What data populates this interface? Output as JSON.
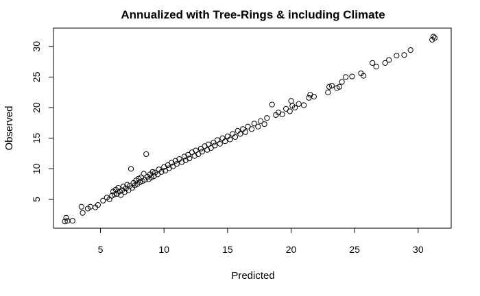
{
  "chart_data": {
    "type": "scatter",
    "title": "Annualized with Tree-Rings & including Climate",
    "xlabel": "Predicted",
    "ylabel": "Observed",
    "xlim": [
      1.3,
      32.6
    ],
    "ylim": [
      0.3,
      33.0
    ],
    "xticks": [
      5,
      10,
      15,
      20,
      25,
      30
    ],
    "yticks": [
      5,
      10,
      15,
      20,
      25,
      30
    ],
    "grid": false,
    "marker": "open-circle",
    "marker_color": "#000000",
    "points": [
      [
        2.2,
        1.4
      ],
      [
        2.3,
        2.0
      ],
      [
        2.4,
        1.5
      ],
      [
        2.8,
        1.5
      ],
      [
        3.5,
        3.8
      ],
      [
        3.6,
        2.8
      ],
      [
        4.0,
        3.5
      ],
      [
        4.2,
        3.8
      ],
      [
        4.6,
        3.7
      ],
      [
        4.8,
        4.1
      ],
      [
        5.2,
        4.8
      ],
      [
        5.5,
        5.3
      ],
      [
        5.7,
        5.0
      ],
      [
        5.9,
        5.6
      ],
      [
        6.0,
        6.3
      ],
      [
        6.1,
        5.8
      ],
      [
        6.2,
        6.6
      ],
      [
        6.3,
        5.9
      ],
      [
        6.4,
        6.9
      ],
      [
        6.5,
        6.3
      ],
      [
        6.6,
        5.7
      ],
      [
        6.7,
        6.5
      ],
      [
        6.8,
        7.1
      ],
      [
        6.9,
        6.2
      ],
      [
        7.0,
        6.8
      ],
      [
        7.1,
        7.4
      ],
      [
        7.2,
        6.5
      ],
      [
        7.3,
        7.2
      ],
      [
        7.4,
        10.0
      ],
      [
        7.5,
        6.9
      ],
      [
        7.6,
        7.7
      ],
      [
        7.7,
        7.3
      ],
      [
        7.8,
        8.1
      ],
      [
        7.9,
        7.5
      ],
      [
        8.0,
        8.4
      ],
      [
        8.1,
        7.8
      ],
      [
        8.2,
        8.6
      ],
      [
        8.3,
        8.0
      ],
      [
        8.4,
        9.2
      ],
      [
        8.5,
        8.2
      ],
      [
        8.6,
        12.4
      ],
      [
        8.7,
        8.7
      ],
      [
        8.8,
        8.3
      ],
      [
        8.9,
        9.1
      ],
      [
        9.0,
        8.6
      ],
      [
        9.1,
        9.5
      ],
      [
        9.2,
        8.8
      ],
      [
        9.3,
        9.4
      ],
      [
        9.5,
        9.1
      ],
      [
        9.6,
        9.9
      ],
      [
        9.8,
        9.5
      ],
      [
        10.0,
        10.3
      ],
      [
        10.1,
        9.7
      ],
      [
        10.3,
        10.6
      ],
      [
        10.4,
        10.1
      ],
      [
        10.6,
        11.0
      ],
      [
        10.7,
        10.4
      ],
      [
        10.9,
        11.3
      ],
      [
        11.0,
        10.8
      ],
      [
        11.2,
        11.6
      ],
      [
        11.4,
        11.1
      ],
      [
        11.6,
        12.0
      ],
      [
        11.7,
        11.4
      ],
      [
        11.9,
        12.3
      ],
      [
        12.0,
        11.7
      ],
      [
        12.2,
        12.7
      ],
      [
        12.4,
        12.1
      ],
      [
        12.5,
        13.0
      ],
      [
        12.7,
        12.4
      ],
      [
        12.9,
        13.3
      ],
      [
        13.0,
        12.8
      ],
      [
        13.2,
        13.7
      ],
      [
        13.4,
        13.1
      ],
      [
        13.5,
        14.0
      ],
      [
        13.7,
        13.4
      ],
      [
        13.9,
        14.3
      ],
      [
        14.0,
        13.8
      ],
      [
        14.2,
        14.7
      ],
      [
        14.4,
        14.1
      ],
      [
        14.6,
        15.0
      ],
      [
        14.8,
        14.5
      ],
      [
        15.0,
        15.3
      ],
      [
        15.2,
        14.8
      ],
      [
        15.4,
        15.7
      ],
      [
        15.6,
        15.2
      ],
      [
        15.8,
        16.2
      ],
      [
        16.0,
        15.7
      ],
      [
        16.2,
        16.5
      ],
      [
        16.4,
        16.0
      ],
      [
        16.6,
        16.9
      ],
      [
        16.9,
        16.5
      ],
      [
        17.1,
        17.4
      ],
      [
        17.4,
        16.9
      ],
      [
        17.6,
        17.8
      ],
      [
        17.9,
        17.3
      ],
      [
        18.1,
        18.3
      ],
      [
        18.5,
        20.5
      ],
      [
        18.8,
        18.8
      ],
      [
        19.0,
        19.2
      ],
      [
        19.3,
        18.9
      ],
      [
        19.6,
        19.8
      ],
      [
        19.9,
        19.4
      ],
      [
        20.1,
        20.3
      ],
      [
        20.0,
        21.1
      ],
      [
        20.3,
        20.0
      ],
      [
        20.6,
        20.6
      ],
      [
        21.0,
        20.4
      ],
      [
        21.4,
        21.6
      ],
      [
        21.5,
        22.1
      ],
      [
        21.8,
        21.8
      ],
      [
        22.9,
        22.5
      ],
      [
        23.0,
        23.4
      ],
      [
        23.2,
        23.6
      ],
      [
        23.6,
        23.2
      ],
      [
        23.8,
        23.4
      ],
      [
        24.0,
        24.2
      ],
      [
        24.3,
        25.0
      ],
      [
        24.8,
        25.1
      ],
      [
        25.5,
        25.6
      ],
      [
        25.7,
        25.2
      ],
      [
        26.4,
        27.3
      ],
      [
        26.7,
        26.7
      ],
      [
        27.4,
        27.3
      ],
      [
        27.7,
        27.8
      ],
      [
        28.3,
        28.5
      ],
      [
        28.9,
        28.6
      ],
      [
        29.4,
        29.4
      ],
      [
        31.1,
        31.1
      ],
      [
        31.2,
        31.6
      ],
      [
        31.3,
        31.4
      ]
    ]
  }
}
